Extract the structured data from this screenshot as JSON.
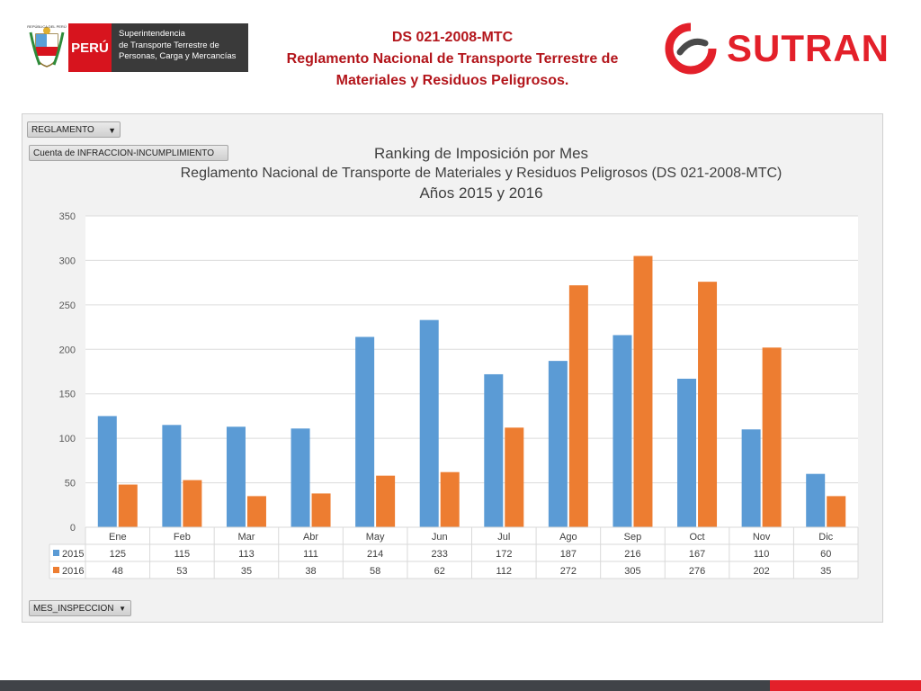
{
  "header": {
    "peru_label": "PERÚ",
    "escudo_text": "REPÚBLICA DEL PERÚ",
    "entity_lines": [
      "Superintendencia",
      "de Transporte Terrestre de",
      "Personas, Carga y Mercancías"
    ],
    "title_line1": "DS 021-2008-MTC",
    "title_line2": "Reglamento Nacional de Transporte Terrestre de",
    "title_line3": "Materiales y Residuos Peligrosos.",
    "brand": "SUTRAN"
  },
  "pivot": {
    "filter_label": "REGLAMENTO",
    "value_label": "Cuenta de INFRACCION-INCUMPLIMIENTO",
    "axis_field": "MES_INSPECCION"
  },
  "colors": {
    "series_2015": "#5b9bd5",
    "series_2016": "#ed7d31",
    "title_red": "#b3151b",
    "brand_red": "#e3202a"
  },
  "chart_data": {
    "type": "bar",
    "title_lines": [
      "Ranking de Imposición por Mes",
      "Reglamento Nacional de Transporte de Materiales y Residuos Peligrosos (DS 021-2008-MTC)",
      "Años 2015 y 2016"
    ],
    "categories": [
      "Ene",
      "Feb",
      "Mar",
      "Abr",
      "May",
      "Jun",
      "Jul",
      "Ago",
      "Sep",
      "Oct",
      "Nov",
      "Dic"
    ],
    "series": [
      {
        "name": "2015",
        "values": [
          125,
          115,
          113,
          111,
          214,
          233,
          172,
          187,
          216,
          167,
          110,
          60
        ]
      },
      {
        "name": "2016",
        "values": [
          48,
          53,
          35,
          38,
          58,
          62,
          112,
          272,
          305,
          276,
          202,
          35
        ]
      }
    ],
    "ylim": [
      0,
      350
    ],
    "yticks": [
      0,
      50,
      100,
      150,
      200,
      250,
      300,
      350
    ],
    "grid": true,
    "data_table": true
  }
}
